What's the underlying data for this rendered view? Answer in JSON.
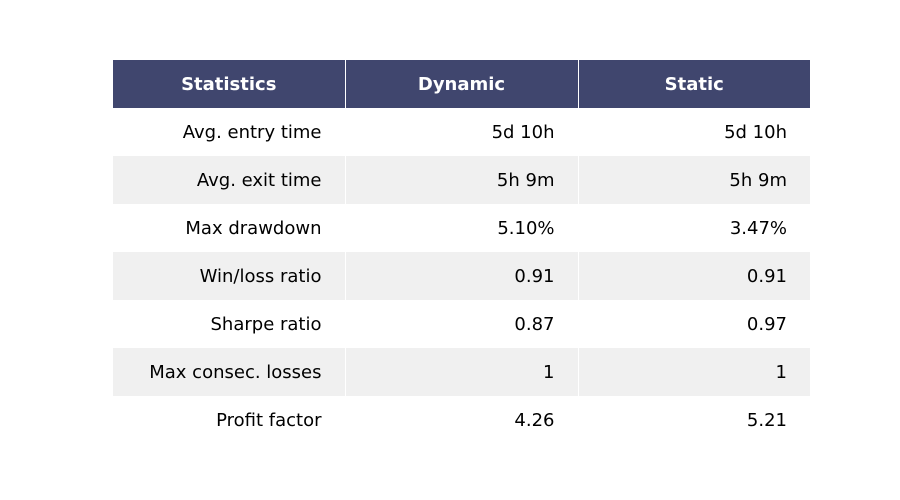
{
  "chart_data": {
    "type": "table",
    "columns": [
      "Statistics",
      "Dynamic",
      "Static"
    ],
    "rows": [
      [
        "Avg. entry time",
        "5d 10h",
        "5d 10h"
      ],
      [
        "Avg. exit time",
        "5h 9m",
        "5h 9m"
      ],
      [
        "Max drawdown",
        "5.10%",
        "3.47%"
      ],
      [
        "Win/loss ratio",
        "0.91",
        "0.91"
      ],
      [
        "Sharpe ratio",
        "0.87",
        "0.97"
      ],
      [
        "Max consec. losses",
        "1",
        "1"
      ],
      [
        "Profit factor",
        "4.26",
        "5.21"
      ]
    ],
    "header_color": "#40466e",
    "header_text_color": "#ffffff",
    "stripe_color": "#f0f0f0"
  }
}
